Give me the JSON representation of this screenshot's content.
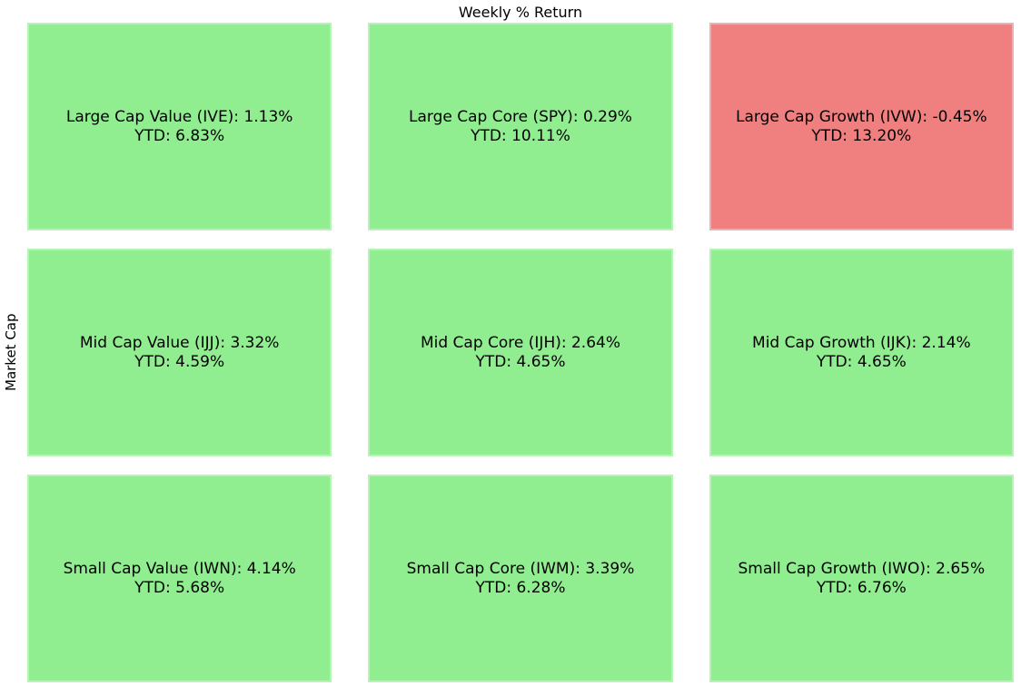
{
  "chart_data": {
    "type": "heatmap",
    "title": "Weekly % Return",
    "xlabel": "",
    "ylabel": "Market Cap",
    "rows": [
      "Large Cap",
      "Mid Cap",
      "Small Cap"
    ],
    "columns": [
      "Value",
      "Core",
      "Growth"
    ],
    "legend": null,
    "grid": false,
    "color_scheme": {
      "positive_weekly_return": "#90EE90",
      "negative_weekly_return": "#F08080",
      "text": "#000000",
      "background": "#FFFFFF"
    },
    "cells": [
      {
        "name": "Large Cap Value",
        "ticker": "IVE",
        "weekly_return_pct": 1.13,
        "ytd_return_pct": 6.83,
        "line1": "Large Cap Value (IVE): 1.13%",
        "line2": "YTD: 6.83%",
        "color": "#90EE90"
      },
      {
        "name": "Large Cap Core",
        "ticker": "SPY",
        "weekly_return_pct": 0.29,
        "ytd_return_pct": 10.11,
        "line1": "Large Cap Core (SPY): 0.29%",
        "line2": "YTD: 10.11%",
        "color": "#90EE90"
      },
      {
        "name": "Large Cap Growth",
        "ticker": "IVW",
        "weekly_return_pct": -0.45,
        "ytd_return_pct": 13.2,
        "line1": "Large Cap Growth (IVW): -0.45%",
        "line2": "YTD: 13.20%",
        "color": "#F08080"
      },
      {
        "name": "Mid Cap Value",
        "ticker": "IJJ",
        "weekly_return_pct": 3.32,
        "ytd_return_pct": 4.59,
        "line1": "Mid Cap Value (IJJ): 3.32%",
        "line2": "YTD: 4.59%",
        "color": "#90EE90"
      },
      {
        "name": "Mid Cap Core",
        "ticker": "IJH",
        "weekly_return_pct": 2.64,
        "ytd_return_pct": 4.65,
        "line1": "Mid Cap Core (IJH): 2.64%",
        "line2": "YTD: 4.65%",
        "color": "#90EE90"
      },
      {
        "name": "Mid Cap Growth",
        "ticker": "IJK",
        "weekly_return_pct": 2.14,
        "ytd_return_pct": 4.65,
        "line1": "Mid Cap Growth (IJK): 2.14%",
        "line2": "YTD: 4.65%",
        "color": "#90EE90"
      },
      {
        "name": "Small Cap Value",
        "ticker": "IWN",
        "weekly_return_pct": 4.14,
        "ytd_return_pct": 5.68,
        "line1": "Small Cap Value (IWN): 4.14%",
        "line2": "YTD: 5.68%",
        "color": "#90EE90"
      },
      {
        "name": "Small Cap Core",
        "ticker": "IWM",
        "weekly_return_pct": 3.39,
        "ytd_return_pct": 6.28,
        "line1": "Small Cap Core (IWM): 3.39%",
        "line2": "YTD: 6.28%",
        "color": "#90EE90"
      },
      {
        "name": "Small Cap Growth",
        "ticker": "IWO",
        "weekly_return_pct": 2.65,
        "ytd_return_pct": 6.76,
        "line1": "Small Cap Growth (IWO): 2.65%",
        "line2": "YTD: 6.76%",
        "color": "#90EE90"
      }
    ]
  }
}
